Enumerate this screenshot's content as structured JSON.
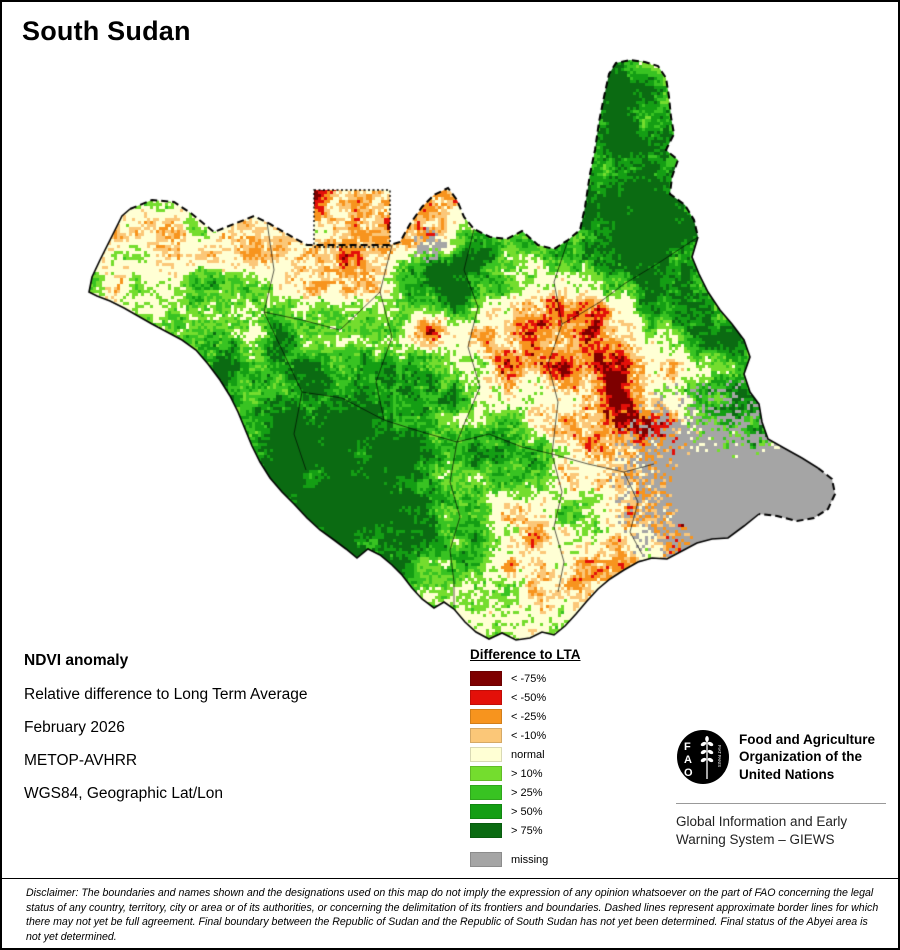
{
  "page": {
    "title": "South Sudan"
  },
  "info": {
    "heading": "NDVI anomaly",
    "lines": [
      "Relative difference to Long Term Average",
      "February 2026",
      "METOP-AVHRR",
      "WGS84, Geographic Lat/Lon"
    ]
  },
  "legend": {
    "title": "Difference to LTA",
    "items": [
      {
        "label": "< -75%",
        "color": "#7e0000"
      },
      {
        "label": "< -50%",
        "color": "#e31009"
      },
      {
        "label": "< -25%",
        "color": "#f7941e"
      },
      {
        "label": "< -10%",
        "color": "#fbc778"
      },
      {
        "label": "normal",
        "color": "#ffffd4"
      },
      {
        "label": "> 10%",
        "color": "#74dd2e"
      },
      {
        "label": "> 25%",
        "color": "#38c322"
      },
      {
        "label": "> 50%",
        "color": "#149e14"
      },
      {
        "label": "> 75%",
        "color": "#0b6b12"
      },
      {
        "label": "missing",
        "color": "#a5a5a5",
        "separated": true
      }
    ]
  },
  "fao": {
    "letters": [
      "F",
      "A",
      "O"
    ],
    "motto": "FIAT PANIS",
    "org_name": "Food and Agriculture Organization of the United Nations",
    "giews": "Global Information and Early Warning System – GIEWS"
  },
  "disclaimer": "Disclaimer: The boundaries and names shown and the designations used on this map do not imply the expression of any opinion whatsoever on the part of FAO concerning the legal status of any country, territory, city or area or of its authorities, or concerning the delimitation of its frontiers and boundaries. Dashed lines represent approximate border lines for which there may not yet be full agreement.  Final boundary between the Republic of Sudan and the Republic of South Sudan has not yet been determined. Final status of the Abyei area is not yet determined."
}
